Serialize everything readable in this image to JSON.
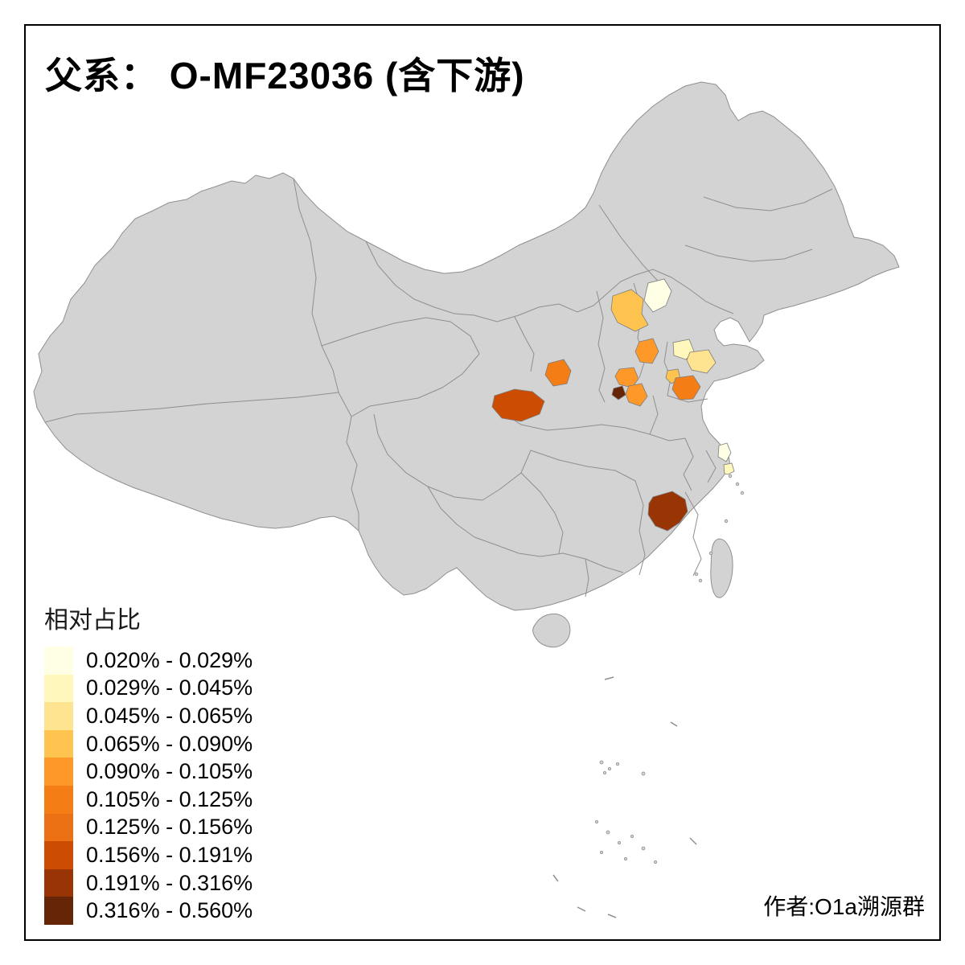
{
  "title": {
    "text": "父系： O-MF23036 (含下游)"
  },
  "legend": {
    "title": "相对占比",
    "items": [
      {
        "label": "0.020% - 0.029%",
        "color": "#FFFFE5"
      },
      {
        "label": "0.029% - 0.045%",
        "color": "#FFF7BC"
      },
      {
        "label": "0.045% - 0.065%",
        "color": "#FEE391"
      },
      {
        "label": "0.065% - 0.090%",
        "color": "#FEC44F"
      },
      {
        "label": "0.090% - 0.105%",
        "color": "#FE9929"
      },
      {
        "label": "0.105% - 0.125%",
        "color": "#F57D15"
      },
      {
        "label": "0.125% - 0.156%",
        "color": "#EC7014"
      },
      {
        "label": "0.156% - 0.191%",
        "color": "#CC4C02"
      },
      {
        "label": "0.191% - 0.316%",
        "color": "#993404"
      },
      {
        "label": "0.316% - 0.560%",
        "color": "#662506"
      }
    ]
  },
  "credit": "作者:O1a溯源群",
  "map": {
    "base_fill": "#D3D3D3",
    "border_color": "#8F8F8F",
    "background": "#FFFFFF",
    "frame_color": "#000000",
    "regions": [
      {
        "id": "hebei-northwest",
        "color": "#FEC44F",
        "legend_class": "0.065% - 0.090%"
      },
      {
        "id": "beijing-area",
        "color": "#FFFFE5",
        "legend_class": "0.020% - 0.029%"
      },
      {
        "id": "shanxi-central",
        "color": "#FE9929",
        "legend_class": "0.090% - 0.105%"
      },
      {
        "id": "shandong-west",
        "color": "#FFF7BC",
        "legend_class": "0.029% - 0.045%"
      },
      {
        "id": "shandong-central",
        "color": "#FEE391",
        "legend_class": "0.045% - 0.065%"
      },
      {
        "id": "shandong-southwest",
        "color": "#FEC44F",
        "legend_class": "0.065% - 0.090%"
      },
      {
        "id": "shaanxi-north",
        "color": "#F57D15",
        "legend_class": "0.105% - 0.125%"
      },
      {
        "id": "henan-north",
        "color": "#FE9929",
        "legend_class": "0.090% - 0.105%"
      },
      {
        "id": "henan-small-dark",
        "color": "#662506",
        "legend_class": "0.316% - 0.560%"
      },
      {
        "id": "henan-south",
        "color": "#FE9929",
        "legend_class": "0.090% - 0.105%"
      },
      {
        "id": "jiangsu-north",
        "color": "#F57D15",
        "legend_class": "0.105% - 0.125%"
      },
      {
        "id": "shaanxi-south",
        "color": "#CC4C02",
        "legend_class": "0.156% - 0.191%"
      },
      {
        "id": "hunan-jiangxi-dark",
        "color": "#993404",
        "legend_class": "0.191% - 0.316%"
      },
      {
        "id": "shanghai-area",
        "color": "#FFFFE5",
        "legend_class": "0.020% - 0.029%"
      },
      {
        "id": "shanghai-area-2",
        "color": "#FFF7BC",
        "legend_class": "0.029% - 0.045%"
      }
    ]
  }
}
